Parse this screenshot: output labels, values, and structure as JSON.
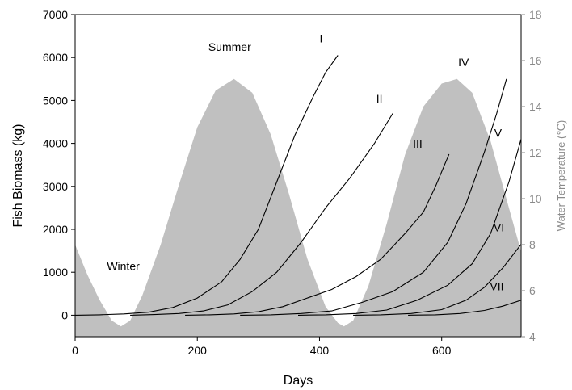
{
  "chart_data": {
    "type": "line",
    "title": "",
    "xlabel": "Days",
    "ylabel": "Fish Biomass (kg)",
    "y2label": "Water Temperature (℃)",
    "xlim": [
      0,
      730
    ],
    "ylim": [
      -500,
      7000
    ],
    "y2lim": [
      4,
      18
    ],
    "x_ticks": [
      0,
      200,
      400,
      600
    ],
    "y_ticks": [
      0,
      1000,
      2000,
      3000,
      4000,
      5000,
      6000,
      7000
    ],
    "y2_ticks": [
      4,
      6,
      8,
      10,
      12,
      14,
      16,
      18
    ],
    "temperature": {
      "axis": "right",
      "fill_color": "#c0c0c0",
      "x": [
        0,
        20,
        40,
        60,
        75,
        90,
        110,
        140,
        170,
        200,
        230,
        260,
        290,
        320,
        350,
        380,
        410,
        430,
        440,
        455,
        480,
        510,
        540,
        570,
        600,
        625,
        650,
        680,
        710,
        730
      ],
      "y": [
        8.0,
        6.7,
        5.6,
        4.7,
        4.45,
        4.7,
        5.8,
        8.0,
        10.6,
        13.1,
        14.7,
        15.2,
        14.6,
        12.8,
        10.2,
        7.4,
        5.3,
        4.6,
        4.45,
        4.7,
        6.2,
        8.9,
        11.9,
        14.0,
        15.0,
        15.2,
        14.6,
        12.5,
        9.6,
        7.7
      ]
    },
    "annotations": [
      {
        "text": "Winter",
        "x": 52,
        "y": 1050
      },
      {
        "text": "Summer",
        "x": 218,
        "y": 6150
      }
    ],
    "series": [
      {
        "name": "I",
        "label_x": 400,
        "label_y": 6350,
        "x": [
          0,
          40,
          80,
          120,
          160,
          200,
          240,
          270,
          300,
          330,
          360,
          390,
          410,
          430
        ],
        "y": [
          0,
          10,
          30,
          70,
          180,
          400,
          780,
          1300,
          2000,
          3100,
          4200,
          5100,
          5650,
          6050
        ]
      },
      {
        "name": "II",
        "label_x": 493,
        "label_y": 4950,
        "x": [
          90,
          130,
          170,
          210,
          250,
          290,
          330,
          370,
          410,
          450,
          490,
          520
        ],
        "y": [
          0,
          15,
          40,
          100,
          240,
          550,
          1000,
          1700,
          2500,
          3200,
          4000,
          4700
        ]
      },
      {
        "name": "III",
        "label_x": 553,
        "label_y": 3900,
        "x": [
          180,
          220,
          260,
          300,
          340,
          380,
          420,
          460,
          500,
          540,
          570,
          590,
          612
        ],
        "y": [
          0,
          10,
          30,
          80,
          200,
          400,
          600,
          900,
          1300,
          1900,
          2400,
          3000,
          3750
        ]
      },
      {
        "name": "IV",
        "label_x": 627,
        "label_y": 5800,
        "x": [
          270,
          320,
          370,
          420,
          470,
          520,
          570,
          610,
          640,
          670,
          690,
          706
        ],
        "y": [
          0,
          10,
          40,
          100,
          300,
          550,
          1000,
          1700,
          2600,
          3800,
          4700,
          5500
        ]
      },
      {
        "name": "V",
        "label_x": 686,
        "label_y": 4150,
        "x": [
          365,
          410,
          460,
          510,
          560,
          610,
          650,
          680,
          710,
          730
        ],
        "y": [
          0,
          10,
          40,
          120,
          350,
          700,
          1200,
          1900,
          3100,
          4100
        ]
      },
      {
        "name": "VI",
        "label_x": 685,
        "label_y": 1950,
        "x": [
          455,
          500,
          550,
          600,
          640,
          670,
          700,
          730
        ],
        "y": [
          0,
          10,
          40,
          130,
          350,
          650,
          1100,
          1650
        ]
      },
      {
        "name": "VII",
        "label_x": 679,
        "label_y": 580,
        "x": [
          545,
          590,
          630,
          670,
          700,
          730
        ],
        "y": [
          0,
          10,
          40,
          110,
          210,
          350
        ]
      }
    ]
  }
}
